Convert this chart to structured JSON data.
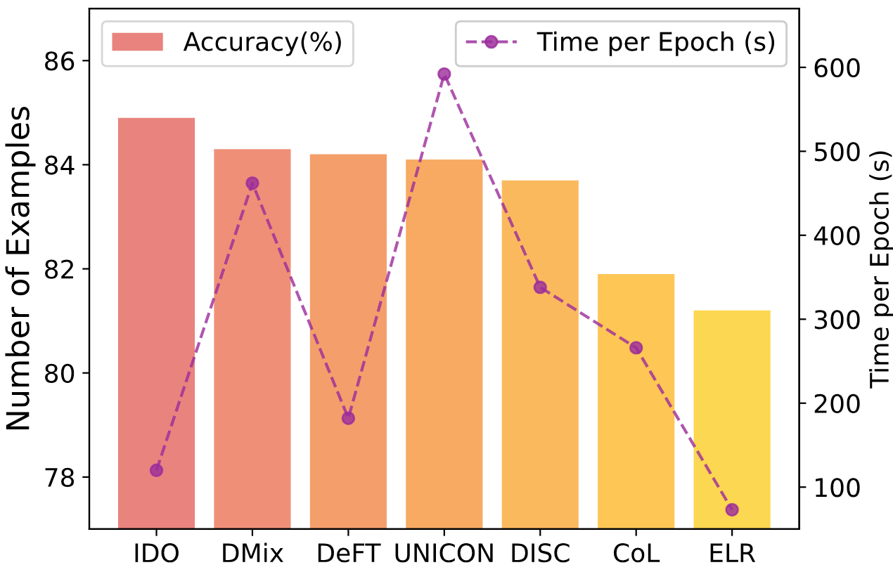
{
  "chart_data": {
    "type": "bar",
    "categories": [
      "IDO",
      "DMix",
      "DeFT",
      "UNICON",
      "DISC",
      "CoL",
      "ELR"
    ],
    "ylabel": "Number of Examples",
    "y2label": "Time per Epoch (s)",
    "ylim": [
      77,
      87
    ],
    "yticks": [
      78,
      80,
      82,
      84,
      86
    ],
    "y2lim": [
      50,
      670
    ],
    "y2ticks": [
      100,
      200,
      300,
      400,
      500,
      600
    ],
    "series": [
      {
        "name": "Accuracy(%)",
        "colors": [
          "#e8837e",
          "#ef8f78",
          "#f49e6c",
          "#f8aa63",
          "#fbb95e",
          "#fdc655",
          "#fcd751"
        ],
        "values": [
          84.9,
          84.3,
          84.2,
          84.1,
          83.7,
          81.9,
          81.2
        ]
      },
      {
        "name": "Time per Epoch (s)",
        "type": "line",
        "axis": "y2",
        "color": "#9b2c9b",
        "marker": "circle",
        "line_style": "dashed",
        "values": [
          120,
          462,
          182,
          592,
          338,
          266,
          73
        ]
      }
    ],
    "legend": "top",
    "grid": false
  }
}
